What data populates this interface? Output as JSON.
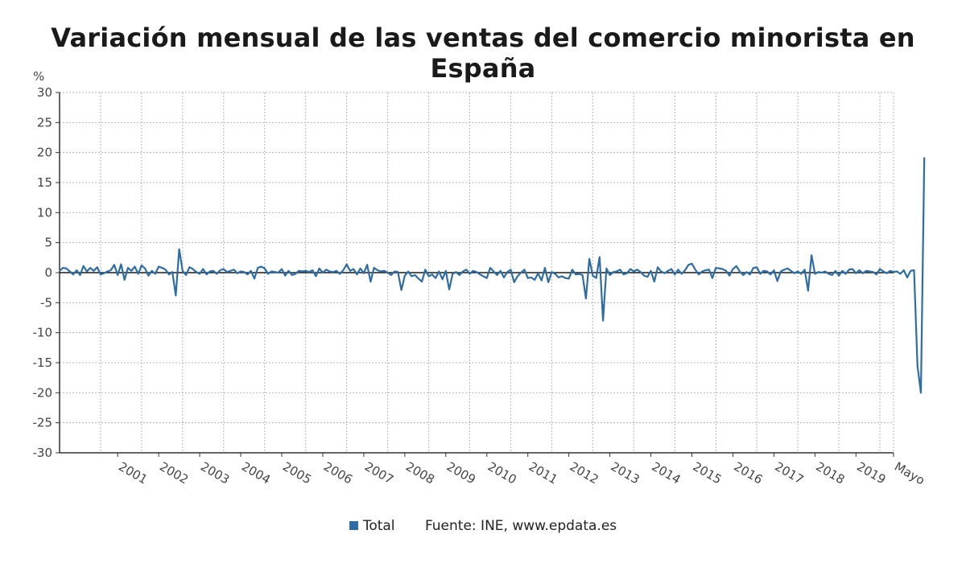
{
  "chart_data": {
    "type": "line",
    "title": "Variación mensual de las ventas del comercio minorista en España",
    "ylabel": "%",
    "xlabel": "",
    "ylim": [
      -30,
      30
    ],
    "yticks": [
      30,
      25,
      20,
      15,
      10,
      5,
      0,
      -5,
      -10,
      -15,
      -20,
      -25,
      -30
    ],
    "xticks": [
      "2001",
      "2002",
      "2003",
      "2004",
      "2005",
      "2006",
      "2007",
      "2008",
      "2009",
      "2010",
      "2011",
      "2012",
      "2013",
      "2014",
      "2015",
      "2016",
      "2017",
      "2018",
      "2019",
      "Mayo"
    ],
    "grid": true,
    "legend_position": "bottom",
    "start": "2000-01",
    "end": "2020-05",
    "series": [
      {
        "name": "Total",
        "color": "#2e6da4",
        "values": [
          0.3,
          0.8,
          0.7,
          0.2,
          -0.3,
          0.4,
          -0.4,
          1.1,
          0.2,
          0.8,
          0.3,
          0.9,
          -0.3,
          -0.1,
          0.2,
          0.4,
          1.3,
          -0.4,
          1.4,
          -1.2,
          0.8,
          0.3,
          1.0,
          -0.2,
          1.2,
          0.7,
          -0.5,
          0.3,
          -0.2,
          1.0,
          0.8,
          0.5,
          -0.3,
          0.1,
          -3.8,
          3.9,
          0.3,
          -0.4,
          0.9,
          0.6,
          0.1,
          -0.2,
          0.6,
          -0.3,
          0.2,
          0.3,
          -0.2,
          0.4,
          0.6,
          0.1,
          0.3,
          0.5,
          -0.1,
          0.2,
          0.1,
          -0.3,
          0.3,
          -1.0,
          0.8,
          1.0,
          0.7,
          -0.2,
          0.2,
          0.1,
          0.0,
          0.6,
          -0.5,
          0.3,
          -0.4,
          -0.2,
          0.3,
          0.2,
          0.3,
          0.1,
          0.4,
          -0.6,
          0.7,
          0.0,
          0.5,
          0.2,
          0.1,
          0.3,
          -0.2,
          0.4,
          1.4,
          0.3,
          0.6,
          -0.3,
          0.7,
          -0.1,
          1.3,
          -1.5,
          0.8,
          0.4,
          0.2,
          0.3,
          0.0,
          -0.4,
          0.2,
          0.1,
          -2.9,
          -0.5,
          0.2,
          -0.6,
          -0.4,
          -1.0,
          -1.5,
          0.5,
          -0.6,
          -0.3,
          -0.9,
          0.2,
          -1.1,
          0.3,
          -2.8,
          -0.2,
          0.1,
          -0.4,
          0.2,
          0.5,
          -0.2,
          0.3,
          0.1,
          -0.3,
          -0.6,
          -0.9,
          0.8,
          0.2,
          -0.4,
          0.3,
          -0.8,
          0.1,
          0.5,
          -1.6,
          -0.6,
          0.0,
          0.5,
          -0.9,
          -0.8,
          -1.2,
          -0.1,
          -1.3,
          0.8,
          -1.6,
          0.1,
          -0.2,
          -0.8,
          -0.6,
          -0.9,
          -1.0,
          0.5,
          -0.3,
          -0.2,
          -0.4,
          -4.3,
          2.3,
          -0.5,
          -0.9,
          2.6,
          -8.0,
          0.7,
          -0.4,
          0.1,
          0.2,
          0.5,
          -0.3,
          -0.1,
          0.6,
          0.2,
          0.5,
          0.1,
          -0.5,
          -0.7,
          0.3,
          -1.5,
          0.9,
          0.2,
          -0.1,
          0.3,
          0.6,
          -0.3,
          0.5,
          -0.2,
          0.4,
          1.3,
          1.5,
          0.5,
          -0.3,
          0.2,
          0.4,
          0.5,
          -0.9,
          0.8,
          0.7,
          0.6,
          0.3,
          -0.5,
          0.6,
          1.1,
          0.2,
          -0.4,
          0.1,
          -0.3,
          0.8,
          0.9,
          -0.2,
          0.3,
          0.2,
          -0.3,
          0.4,
          -1.4,
          0.2,
          0.5,
          0.7,
          0.3,
          -0.1,
          0.2,
          -0.2,
          0.5,
          -3.0,
          2.9,
          -0.2,
          0.1,
          0.0,
          0.2,
          -0.2,
          -0.4,
          0.3,
          -0.5,
          0.3,
          -0.2,
          0.5,
          0.6,
          -0.1,
          0.4,
          -0.1,
          0.3,
          0.2,
          0.1,
          -0.3,
          0.6,
          0.2,
          -0.1,
          0.3,
          0.1,
          0.2,
          -0.2,
          0.4,
          -0.8,
          0.3,
          0.4,
          -15.5,
          -20.0,
          19.2
        ]
      }
    ],
    "source": "Fuente: INE, www.epdata.es"
  }
}
